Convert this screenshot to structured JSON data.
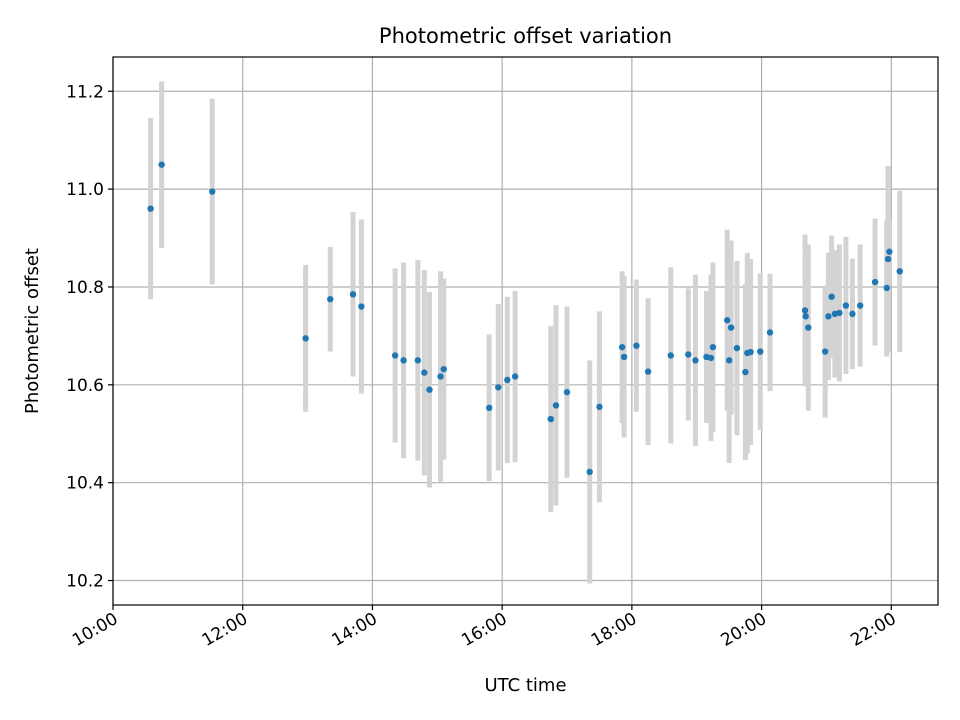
{
  "chart_data": {
    "type": "scatter",
    "title": "Photometric offset variation",
    "xlabel": "UTC time",
    "ylabel": "Photometric offset",
    "x_ticks": [
      "10:00",
      "12:00",
      "14:00",
      "16:00",
      "18:00",
      "20:00",
      "22:00"
    ],
    "x_tick_values_hours": [
      10,
      12,
      14,
      16,
      18,
      20,
      22
    ],
    "y_ticks": [
      "10.2",
      "10.4",
      "10.6",
      "10.8",
      "11.0",
      "11.2"
    ],
    "y_tick_values": [
      10.2,
      10.4,
      10.6,
      10.8,
      11.0,
      11.2
    ],
    "xlim_hours": [
      10,
      22.72
    ],
    "ylim": [
      10.15,
      11.27
    ],
    "grid": true,
    "colors": {
      "points": "#1f77b4",
      "errorbars": "#d3d3d3",
      "grid": "#b0b0b0"
    },
    "x_hours": [
      10.58,
      10.75,
      11.53,
      12.97,
      13.35,
      13.7,
      13.83,
      14.35,
      14.48,
      14.7,
      14.8,
      14.88,
      15.05,
      15.1,
      15.8,
      15.94,
      16.08,
      16.2,
      16.75,
      16.83,
      17.0,
      17.35,
      17.5,
      17.85,
      17.88,
      18.07,
      18.25,
      18.6,
      18.87,
      18.98,
      19.15,
      19.22,
      19.25,
      19.47,
      19.5,
      19.53,
      19.62,
      19.75,
      19.78,
      19.83,
      19.98,
      20.13,
      20.67,
      20.68,
      20.72,
      20.98,
      21.03,
      21.08,
      21.13,
      21.2,
      21.3,
      21.4,
      21.52,
      21.75,
      21.93,
      21.95,
      21.97,
      22.13
    ],
    "y": [
      10.96,
      11.05,
      10.995,
      10.695,
      10.775,
      10.785,
      10.76,
      10.66,
      10.65,
      10.65,
      10.625,
      10.59,
      10.617,
      10.632,
      10.553,
      10.595,
      10.61,
      10.617,
      10.53,
      10.558,
      10.585,
      10.422,
      10.555,
      10.677,
      10.657,
      10.68,
      10.627,
      10.66,
      10.662,
      10.65,
      10.657,
      10.655,
      10.677,
      10.732,
      10.65,
      10.717,
      10.675,
      10.626,
      10.665,
      10.667,
      10.668,
      10.707,
      10.752,
      10.74,
      10.717,
      10.668,
      10.74,
      10.78,
      10.745,
      10.747,
      10.762,
      10.745,
      10.762,
      10.81,
      10.798,
      10.857,
      10.872,
      10.832
    ],
    "err": [
      0.185,
      0.17,
      0.19,
      0.15,
      0.107,
      0.168,
      0.178,
      0.178,
      0.2,
      0.205,
      0.21,
      0.2,
      0.215,
      0.185,
      0.15,
      0.17,
      0.17,
      0.175,
      0.19,
      0.205,
      0.175,
      0.228,
      0.195,
      0.155,
      0.165,
      0.135,
      0.15,
      0.18,
      0.135,
      0.175,
      0.135,
      0.17,
      0.173,
      0.185,
      0.21,
      0.178,
      0.178,
      0.18,
      0.205,
      0.19,
      0.16,
      0.12,
      0.155,
      0.135,
      0.17,
      0.135,
      0.13,
      0.125,
      0.13,
      0.14,
      0.14,
      0.113,
      0.125,
      0.13,
      0.14,
      0.19,
      0.065,
      0.165
    ]
  }
}
